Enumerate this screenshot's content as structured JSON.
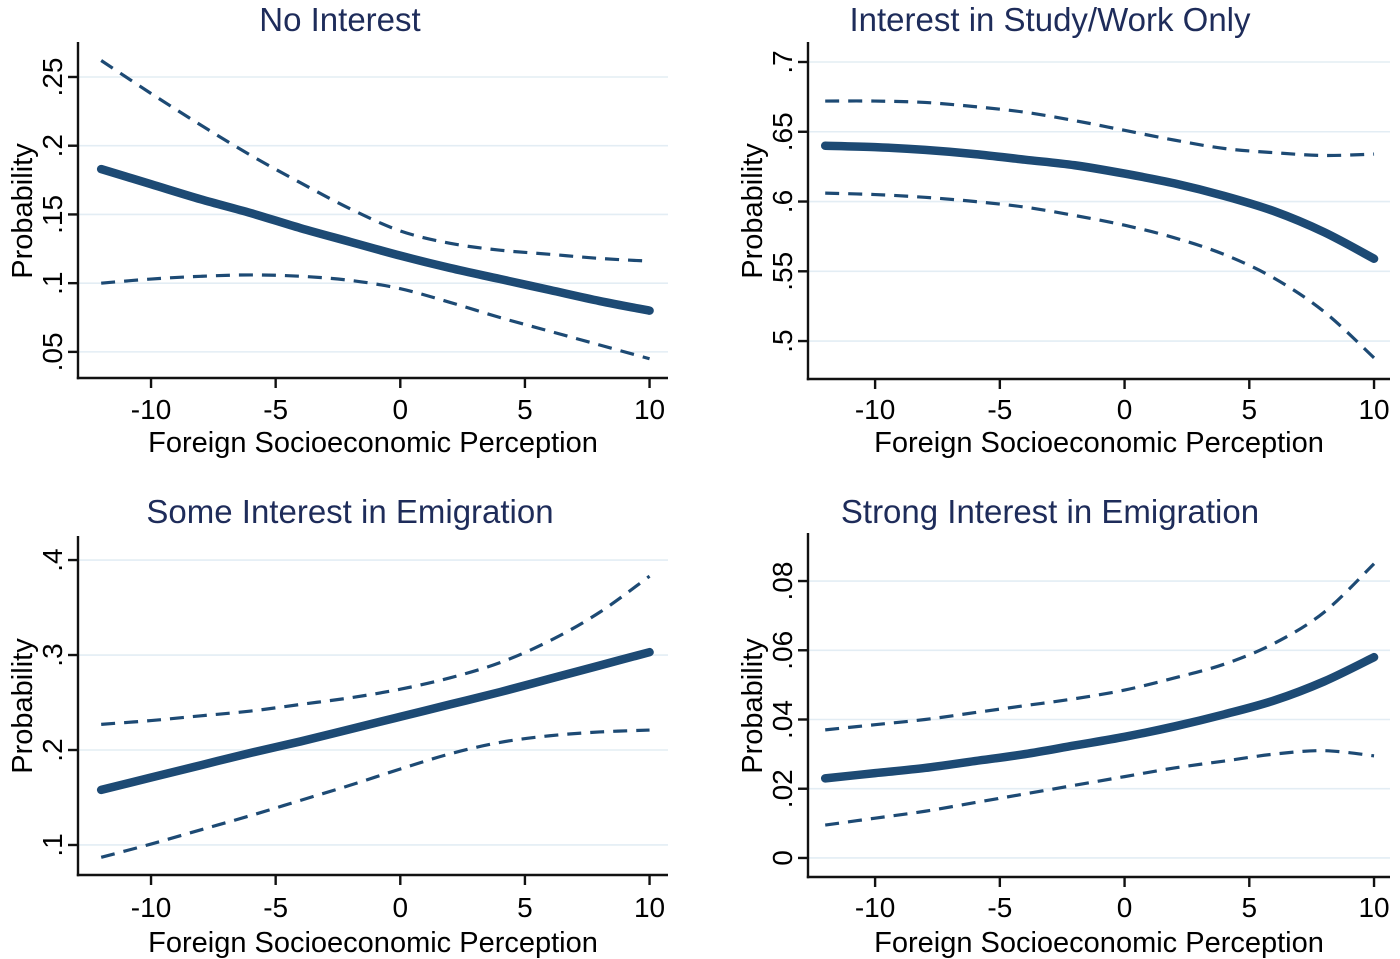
{
  "styles": {
    "background": "#ffffff",
    "line_color": "#1d4a74",
    "title_color": "#1e2c5a",
    "axis_color": "#111111",
    "grid_color": "#e3edf4",
    "text_color": "#000000"
  },
  "chart_data": [
    {
      "type": "line",
      "title": "No Interest",
      "xlabel": "Foreign Socioeconomic Perception",
      "ylabel": "Probability",
      "grid": true,
      "legend": "none",
      "xlim": [
        -12.93,
        10.74
      ],
      "ylim": [
        0.031,
        0.274
      ],
      "xtick_values": [
        -10,
        -5,
        0,
        5,
        10
      ],
      "xtick_labels": [
        "-10",
        "-5",
        "0",
        "5",
        "10"
      ],
      "ytick_values": [
        0.05,
        0.1,
        0.15,
        0.2,
        0.25
      ],
      "ytick_labels": [
        ".05",
        ".1",
        ".15",
        ".2",
        ".25"
      ],
      "x": [
        -12,
        -10,
        -8,
        -6,
        -4,
        -2,
        0,
        2,
        4,
        6,
        8,
        10
      ],
      "series": [
        {
          "name": "predicted",
          "style": "solid",
          "values": [
            0.183,
            0.172,
            0.161,
            0.151,
            0.14,
            0.13,
            0.12,
            0.111,
            0.103,
            0.095,
            0.087,
            0.08
          ]
        },
        {
          "name": "upper-ci",
          "style": "dashed",
          "values": [
            0.262,
            0.238,
            0.215,
            0.193,
            0.173,
            0.154,
            0.138,
            0.129,
            0.124,
            0.121,
            0.118,
            0.116
          ]
        },
        {
          "name": "lower-ci",
          "style": "dashed",
          "values": [
            0.1,
            0.103,
            0.105,
            0.106,
            0.105,
            0.102,
            0.096,
            0.086,
            0.075,
            0.065,
            0.055,
            0.045
          ]
        }
      ]
    },
    {
      "type": "line",
      "title": "Interest in Study/Work Only",
      "xlabel": "Foreign Socioeconomic Perception",
      "ylabel": "Probability",
      "grid": true,
      "legend": "none",
      "xlim": [
        -12.69,
        10.64
      ],
      "ylim": [
        0.4728,
        0.7129
      ],
      "xtick_values": [
        -10,
        -5,
        0,
        5,
        10
      ],
      "xtick_labels": [
        "-10",
        "-5",
        "0",
        "5",
        "10"
      ],
      "ytick_values": [
        0.5,
        0.55,
        0.6,
        0.65,
        0.7
      ],
      "ytick_labels": [
        ".5",
        ".55",
        ".6",
        ".65",
        ".7"
      ],
      "x": [
        -12,
        -10,
        -8,
        -6,
        -4,
        -2,
        0,
        2,
        4,
        6,
        8,
        10
      ],
      "series": [
        {
          "name": "predicted",
          "style": "solid",
          "values": [
            0.64,
            0.639,
            0.637,
            0.634,
            0.63,
            0.626,
            0.62,
            0.613,
            0.604,
            0.593,
            0.578,
            0.559
          ]
        },
        {
          "name": "upper-ci",
          "style": "dashed",
          "values": [
            0.672,
            0.672,
            0.671,
            0.668,
            0.664,
            0.658,
            0.651,
            0.644,
            0.638,
            0.635,
            0.633,
            0.634
          ]
        },
        {
          "name": "lower-ci",
          "style": "dashed",
          "values": [
            0.606,
            0.605,
            0.603,
            0.6,
            0.596,
            0.59,
            0.583,
            0.574,
            0.562,
            0.545,
            0.521,
            0.488
          ]
        }
      ]
    },
    {
      "type": "line",
      "title": "Some Interest in Emigration",
      "xlabel": "Foreign Socioeconomic Perception",
      "ylabel": "Probability",
      "grid": true,
      "legend": "none",
      "xlim": [
        -12.93,
        10.74
      ],
      "ylim": [
        0.0684,
        0.4232
      ],
      "xtick_values": [
        -10,
        -5,
        0,
        5,
        10
      ],
      "xtick_labels": [
        "-10",
        "-5",
        "0",
        "5",
        "10"
      ],
      "ytick_values": [
        0.1,
        0.2,
        0.3,
        0.4
      ],
      "ytick_labels": [
        ".1",
        ".2",
        ".3",
        ".4"
      ],
      "x": [
        -12,
        -10,
        -8,
        -6,
        -4,
        -2,
        0,
        2,
        4,
        6,
        8,
        10
      ],
      "series": [
        {
          "name": "predicted",
          "style": "solid",
          "values": [
            0.158,
            0.171,
            0.184,
            0.197,
            0.209,
            0.222,
            0.235,
            0.248,
            0.261,
            0.275,
            0.289,
            0.303
          ]
        },
        {
          "name": "upper-ci",
          "style": "dashed",
          "values": [
            0.227,
            0.231,
            0.236,
            0.241,
            0.248,
            0.255,
            0.264,
            0.276,
            0.292,
            0.315,
            0.345,
            0.383
          ]
        },
        {
          "name": "lower-ci",
          "style": "dashed",
          "values": [
            0.087,
            0.101,
            0.116,
            0.131,
            0.147,
            0.163,
            0.18,
            0.196,
            0.208,
            0.215,
            0.219,
            0.221
          ]
        }
      ]
    },
    {
      "type": "line",
      "title": "Strong Interest in Emigration",
      "xlabel": "Foreign Socioeconomic Perception",
      "ylabel": "Probability",
      "grid": true,
      "legend": "none",
      "xlim": [
        -12.69,
        10.64
      ],
      "ylim": [
        -0.0055,
        0.0933
      ],
      "xtick_values": [
        -10,
        -5,
        0,
        5,
        10
      ],
      "xtick_labels": [
        "-10",
        "-5",
        "0",
        "5",
        "10"
      ],
      "ytick_values": [
        0,
        0.02,
        0.04,
        0.06,
        0.08
      ],
      "ytick_labels": [
        "0",
        ".02",
        ".04",
        ".06",
        ".08"
      ],
      "x": [
        -12,
        -10,
        -8,
        -6,
        -4,
        -2,
        0,
        2,
        4,
        6,
        8,
        10
      ],
      "series": [
        {
          "name": "predicted",
          "style": "solid",
          "values": [
            0.023,
            0.0245,
            0.026,
            0.028,
            0.03,
            0.0325,
            0.035,
            0.038,
            0.0415,
            0.0455,
            0.051,
            0.058
          ]
        },
        {
          "name": "upper-ci",
          "style": "dashed",
          "values": [
            0.037,
            0.0385,
            0.04,
            0.042,
            0.044,
            0.046,
            0.0485,
            0.052,
            0.056,
            0.062,
            0.071,
            0.085
          ]
        },
        {
          "name": "lower-ci",
          "style": "dashed",
          "values": [
            0.0095,
            0.0115,
            0.0135,
            0.016,
            0.0185,
            0.021,
            0.0235,
            0.026,
            0.028,
            0.03,
            0.031,
            0.0295
          ]
        }
      ]
    }
  ]
}
